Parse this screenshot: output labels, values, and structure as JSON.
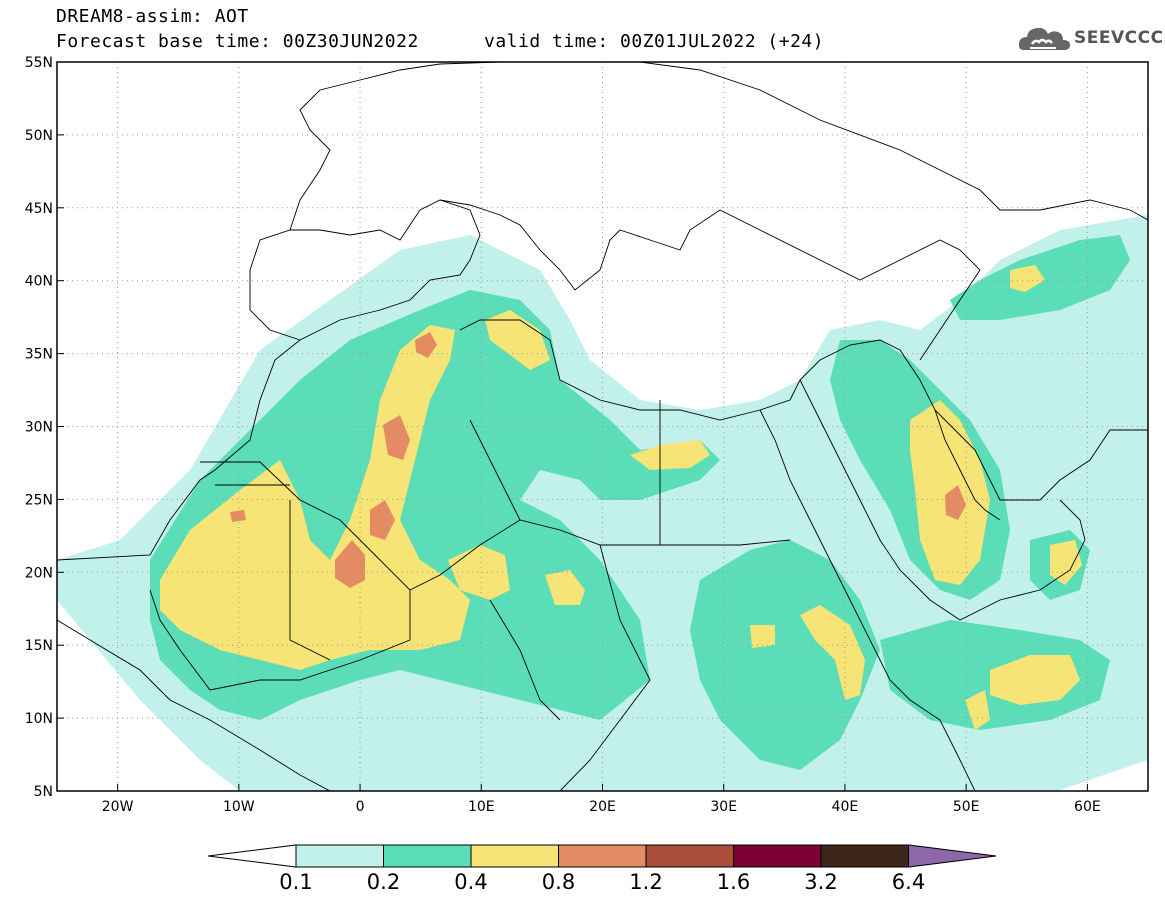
{
  "header": {
    "line1": "DREAM8-assim: AOT",
    "line2": "Forecast base time: 00Z30JUN2022",
    "line3": "valid time: 00Z01JUL2022 (+24)"
  },
  "logo": {
    "text": "SEEVCCC",
    "icon": "cloud-icon"
  },
  "map": {
    "lat_labels": [
      "55N",
      "50N",
      "45N",
      "40N",
      "35N",
      "30N",
      "25N",
      "20N",
      "15N",
      "10N",
      "5N"
    ],
    "lat_values": [
      55,
      50,
      45,
      40,
      35,
      30,
      25,
      20,
      15,
      10,
      5
    ],
    "lon_labels": [
      "20W",
      "10W",
      "0",
      "10E",
      "20E",
      "30E",
      "40E",
      "50E",
      "60E"
    ],
    "lon_values": [
      -20,
      -10,
      0,
      10,
      20,
      30,
      40,
      50,
      60
    ],
    "lon_range": [
      -25,
      65
    ],
    "lat_range": [
      5,
      55
    ],
    "colors": {
      "c01": "#c2f0ea",
      "c02": "#5bddb7",
      "c04": "#f7e476",
      "c08": "#e58b64",
      "c12": "#a94d3a",
      "c16": "#7c0032",
      "c32": "#3c2718",
      "c64": "#8e67a8"
    }
  },
  "colorbar": {
    "labels": [
      "0.1",
      "0.2",
      "0.4",
      "0.8",
      "1.2",
      "1.6",
      "3.2",
      "6.4"
    ],
    "colors": [
      "#c2f0ea",
      "#5bddb7",
      "#f7e476",
      "#e58b64",
      "#a94d3a",
      "#7c0032",
      "#3c2718"
    ],
    "low_color": "#ffffff",
    "high_color": "#8e67a8"
  }
}
